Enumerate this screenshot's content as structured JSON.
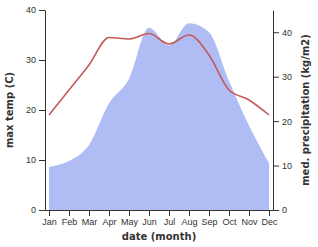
{
  "chart_data": {
    "type": "line",
    "categories": [
      "Jan",
      "Feb",
      "Mar",
      "Apr",
      "May",
      "Jun",
      "Jul",
      "Aug",
      "Sep",
      "Oct",
      "Nov",
      "Dec"
    ],
    "x_label": "date (month)",
    "y_label": "max temp (C)",
    "y2_label": "med. precipitation (kg/m2)",
    "ylim": [
      0,
      40
    ],
    "yticks": [
      0,
      10,
      20,
      30,
      40
    ],
    "y2lim": [
      0,
      45
    ],
    "y2ticks": [
      0,
      10,
      20,
      30,
      40
    ],
    "series": [
      {
        "type": "area",
        "axis": "y2",
        "color": "#b0bdf4",
        "values": [
          9.7,
          11,
          14.6,
          24,
          29.5,
          41,
          37,
          42,
          40,
          29,
          19,
          10.5
        ]
      },
      {
        "type": "line",
        "color": "#c45a5a",
        "values": [
          19,
          24,
          29,
          34.5,
          34.2,
          35.3,
          33.2,
          35,
          31,
          24,
          22,
          19
        ]
      }
    ]
  }
}
